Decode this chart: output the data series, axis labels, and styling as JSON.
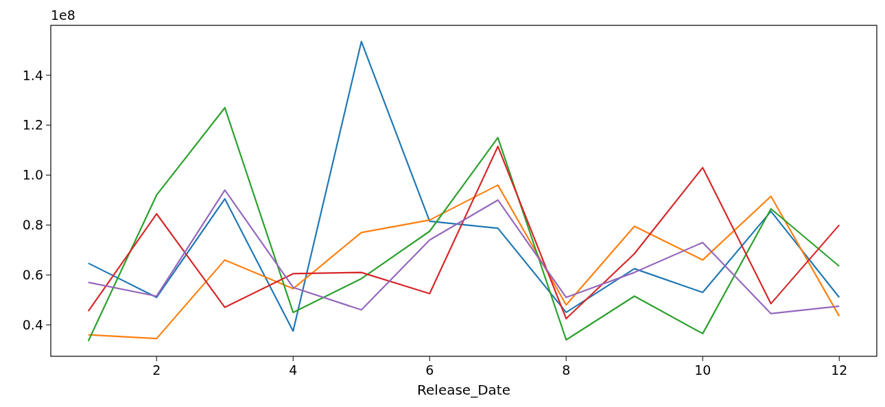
{
  "chart_data": {
    "type": "line",
    "xlabel": "Release_Date",
    "annotations": [
      "1e8"
    ],
    "x": [
      1,
      2,
      3,
      4,
      5,
      6,
      7,
      8,
      9,
      10,
      11,
      12
    ],
    "xlim": [
      0.45,
      12.55
    ],
    "xticks": [
      2,
      4,
      6,
      8,
      10,
      12
    ],
    "ylim": [
      0.274,
      1.6
    ],
    "yticks": [
      0.4,
      0.6,
      0.8,
      {
        "value": 1,
        "label": "1.0"
      },
      1.2,
      1.4
    ],
    "grid": false,
    "line_style": "solid",
    "marker": "none",
    "series": [
      {
        "color": "#1f77b4",
        "values": [
          0.647,
          0.51,
          0.905,
          0.375,
          1.535,
          0.815,
          0.787,
          0.45,
          0.625,
          0.53,
          0.855,
          0.51
        ]
      },
      {
        "color": "#ff7f0e",
        "values": [
          0.36,
          0.345,
          0.66,
          0.545,
          0.77,
          0.82,
          0.96,
          0.48,
          0.795,
          0.66,
          0.915,
          0.435
        ]
      },
      {
        "color": "#2ca02c",
        "values": [
          0.335,
          0.92,
          1.27,
          0.45,
          0.585,
          0.775,
          1.15,
          0.34,
          0.515,
          0.365,
          0.865,
          0.635
        ]
      },
      {
        "color": "#d62728",
        "values": [
          0.455,
          0.845,
          0.47,
          0.605,
          0.61,
          0.525,
          1.115,
          0.425,
          0.685,
          1.03,
          0.485,
          0.8
        ]
      },
      {
        "color": "#9467bd",
        "values": [
          0.57,
          0.515,
          0.94,
          0.55,
          0.46,
          0.74,
          0.9,
          0.51,
          0.61,
          0.73,
          0.445,
          0.475
        ]
      }
    ]
  }
}
